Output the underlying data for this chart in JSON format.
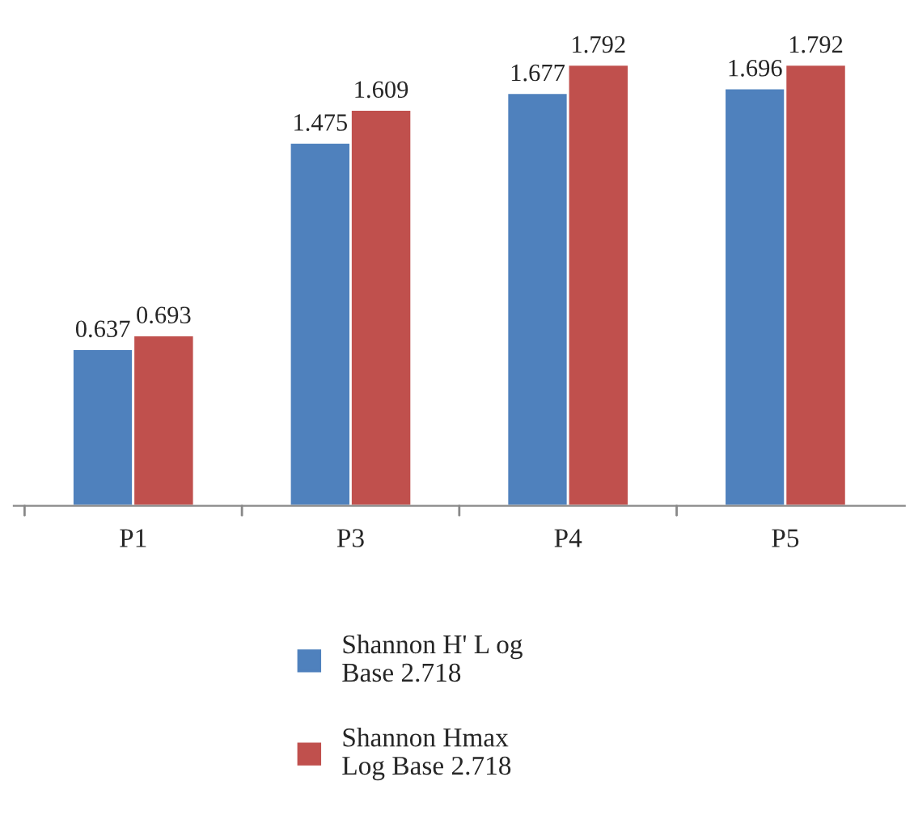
{
  "chart_data": {
    "type": "bar",
    "categories": [
      "P1",
      "P3",
      "P4",
      "P5"
    ],
    "series": [
      {
        "name": "Shannon H' L og\nBase 2.718",
        "color": "#4f81bd",
        "values": [
          0.637,
          1.475,
          1.677,
          1.696
        ]
      },
      {
        "name": "Shannon Hmax\nLog Base 2.718",
        "color": "#c0504d",
        "values": [
          0.693,
          1.609,
          1.792,
          1.792
        ]
      }
    ],
    "data_labels": true,
    "legend": "bottom",
    "grid": false
  }
}
